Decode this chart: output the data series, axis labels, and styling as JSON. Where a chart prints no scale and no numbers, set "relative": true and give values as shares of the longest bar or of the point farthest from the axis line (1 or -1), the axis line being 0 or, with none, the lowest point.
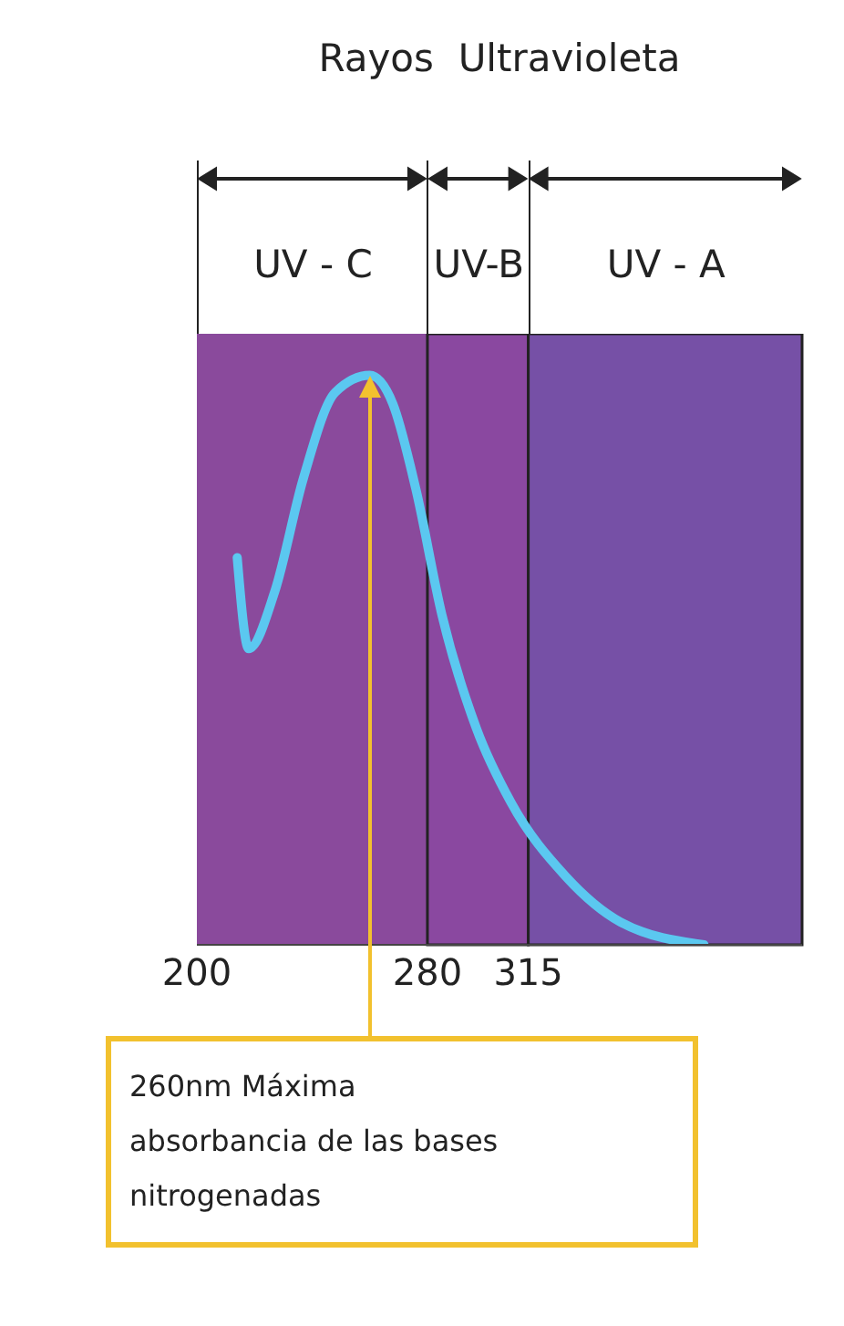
{
  "chart_data": {
    "type": "line",
    "title": "Rayos  Ultravioleta",
    "relative": true,
    "x": [
      214,
      218,
      227,
      237,
      248,
      260,
      268,
      276,
      285,
      297,
      309,
      328,
      347,
      376
    ],
    "series": [
      {
        "color": "#5bc8f0",
        "values": [
          0.68,
          0.52,
          0.62,
          0.82,
          0.97,
          1,
          0.95,
          0.8,
          0.58,
          0.38,
          0.25,
          0.12,
          0.04,
          0
        ]
      }
    ],
    "xlim": [
      200,
      410
    ],
    "xticks": [
      200,
      280,
      315
    ],
    "bands": [
      {
        "axis": "x",
        "from": 200,
        "to": 280,
        "label": "UV - C",
        "color": "#8a4a9c"
      },
      {
        "axis": "x",
        "from": 280,
        "to": 315,
        "label": "UV-B",
        "color": "#8a48a0"
      },
      {
        "axis": "x",
        "from": 315,
        "to": 410,
        "label": "UV - A",
        "color": "#7650a6"
      }
    ],
    "annotations": [
      {
        "text": "260nm Máxima absorbancia de las bases nitrogenadas",
        "x": 260,
        "y": 1
      }
    ]
  }
}
